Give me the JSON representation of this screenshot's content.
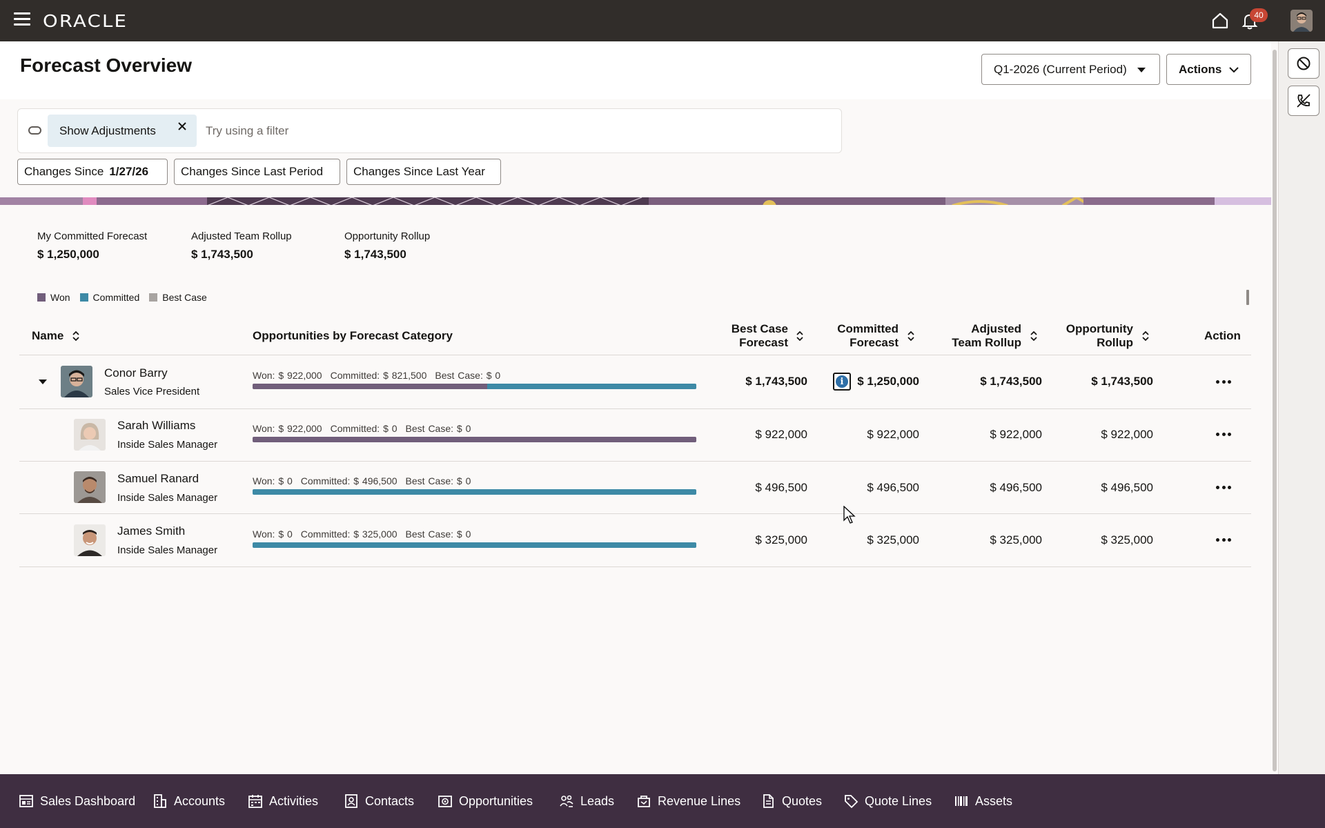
{
  "header": {
    "logo": "ORACLE",
    "notification_count": "40"
  },
  "page": {
    "title": "Forecast Overview",
    "period_select": "Q1-2026 (Current Period)",
    "actions_label": "Actions"
  },
  "filter": {
    "chip_label": "Show Adjustments",
    "placeholder": "Try using a filter"
  },
  "changes": {
    "since_date_label": "Changes Since",
    "since_date_value": "1/27/26",
    "since_last_period": "Changes Since Last Period",
    "since_last_year": "Changes Since Last Year"
  },
  "summary": [
    {
      "label": "My Committed Forecast",
      "value": "$ 1,250,000"
    },
    {
      "label": "Adjusted Team Rollup",
      "value": "$ 1,743,500"
    },
    {
      "label": "Opportunity Rollup",
      "value": "$ 1,743,500"
    }
  ],
  "legend": [
    {
      "label": "Won",
      "color": "#715e7b"
    },
    {
      "label": "Committed",
      "color": "#3d8aa6"
    },
    {
      "label": "Best Case",
      "color": "#a8a4a1"
    }
  ],
  "table": {
    "headers": {
      "name": "Name",
      "opps": "Opportunities by Forecast Category",
      "best_case_1": "Best Case",
      "best_case_2": "Forecast",
      "committed_1": "Committed",
      "committed_2": "Forecast",
      "adjusted_1": "Adjusted",
      "adjusted_2": "Team Rollup",
      "opp_rollup_1": "Opportunity",
      "opp_rollup_2": "Rollup",
      "action": "Action"
    },
    "rows": [
      {
        "name": "Conor Barry",
        "title": "Sales Vice President",
        "won_label": "Won: $ 922,000",
        "committed_label": "Committed: $ 821,500",
        "best_case_label": "Best Case: $ 0",
        "won_fraction": 0.529,
        "committed_fraction": 0.471,
        "best_case_fraction": 0,
        "best_case_forecast": "$ 1,743,500",
        "committed_forecast": "$ 1,250,000",
        "adjusted_team_rollup": "$ 1,743,500",
        "opportunity_rollup": "$ 1,743,500"
      },
      {
        "name": "Sarah Williams",
        "title": "Inside Sales Manager",
        "won_label": "Won: $ 922,000",
        "committed_label": "Committed: $ 0",
        "best_case_label": "Best Case: $ 0",
        "won_fraction": 1,
        "committed_fraction": 0,
        "best_case_fraction": 0,
        "best_case_forecast": "$ 922,000",
        "committed_forecast": "$ 922,000",
        "adjusted_team_rollup": "$ 922,000",
        "opportunity_rollup": "$ 922,000"
      },
      {
        "name": "Samuel Ranard",
        "title": "Inside Sales Manager",
        "won_label": "Won: $ 0",
        "committed_label": "Committed: $ 496,500",
        "best_case_label": "Best Case: $ 0",
        "won_fraction": 0,
        "committed_fraction": 1,
        "best_case_fraction": 0,
        "best_case_forecast": "$ 496,500",
        "committed_forecast": "$ 496,500",
        "adjusted_team_rollup": "$ 496,500",
        "opportunity_rollup": "$ 496,500"
      },
      {
        "name": "James Smith",
        "title": "Inside Sales Manager",
        "won_label": "Won: $ 0",
        "committed_label": "Committed: $ 325,000",
        "best_case_label": "Best Case: $ 0",
        "won_fraction": 0,
        "committed_fraction": 1,
        "best_case_fraction": 0,
        "best_case_forecast": "$ 325,000",
        "committed_forecast": "$ 325,000",
        "adjusted_team_rollup": "$ 325,000",
        "opportunity_rollup": "$ 325,000"
      }
    ]
  },
  "bottom_nav": [
    {
      "label": "Sales Dashboard",
      "icon": "dashboard-icon"
    },
    {
      "label": "Accounts",
      "icon": "building-icon"
    },
    {
      "label": "Activities",
      "icon": "calendar-icon"
    },
    {
      "label": "Contacts",
      "icon": "contact-card-icon"
    },
    {
      "label": "Opportunities",
      "icon": "opportunity-icon"
    },
    {
      "label": "Leads",
      "icon": "leads-icon"
    },
    {
      "label": "Revenue Lines",
      "icon": "revenue-lines-icon"
    },
    {
      "label": "Quotes",
      "icon": "quote-document-icon"
    },
    {
      "label": "Quote Lines",
      "icon": "tag-icon"
    },
    {
      "label": "Assets",
      "icon": "barcode-icon"
    }
  ]
}
